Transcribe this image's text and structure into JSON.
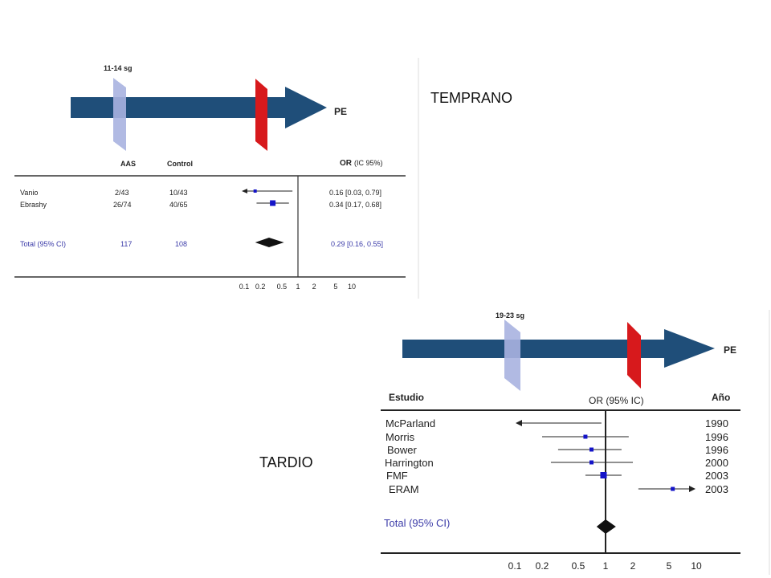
{
  "labels": {
    "early": "TEMPRANO",
    "late": "TARDIO"
  },
  "colors": {
    "arrow": "#1f4e79",
    "window": "#a9b3e0",
    "marker": "#d7191c",
    "study_box": "#1414c8",
    "total_text": "#3b3ba8"
  },
  "early": {
    "window_label": "11-14 sg",
    "end_label": "PE",
    "headers": {
      "aas": "AAS",
      "control": "Control",
      "or_bold": "OR",
      "or_rest": "(IC 95%)"
    },
    "studies": [
      {
        "name": "Vanio",
        "aas": "2/43",
        "control": "10/43",
        "or_text": "0.16 [0.03, 0.79]",
        "or": 0.16,
        "lo": 0.03,
        "hi": 0.79,
        "arrow_left": true
      },
      {
        "name": "Ebrashy",
        "aas": "26/74",
        "control": "40/65",
        "or_text": "0.34 [0.17, 0.68]",
        "or": 0.34,
        "lo": 0.17,
        "hi": 0.68,
        "arrow_left": false
      }
    ],
    "total": {
      "name": "Total (95% CI)",
      "aas": "117",
      "control": "108",
      "or_text": "0.29 [0.16, 0.55]",
      "or": 0.29,
      "lo": 0.16,
      "hi": 0.55
    },
    "ticks": [
      "0.1",
      "0.2",
      "0.5",
      "1",
      "2",
      "5",
      "10"
    ]
  },
  "late": {
    "window_label": "19-23 sg",
    "end_label": "PE",
    "headers": {
      "study": "Estudio",
      "or": "OR (95% IC)",
      "year": "Año"
    },
    "studies": [
      {
        "name": "McParland",
        "year": "1990",
        "lo": 0.1,
        "hi": 0.9,
        "or": null,
        "arrow_left": true,
        "arrow_right": false
      },
      {
        "name": "Morris",
        "year": "1996",
        "lo": 0.2,
        "hi": 1.8,
        "or": 0.6,
        "arrow_left": false,
        "arrow_right": false
      },
      {
        "name": "Bower",
        "year": "1996",
        "lo": 0.3,
        "hi": 1.5,
        "or": 0.7,
        "arrow_left": false,
        "arrow_right": false
      },
      {
        "name": "Harrington",
        "year": "2000",
        "lo": 0.25,
        "hi": 2.0,
        "or": 0.7,
        "arrow_left": false,
        "arrow_right": false
      },
      {
        "name": "FMF",
        "year": "2003",
        "lo": 0.6,
        "hi": 1.5,
        "or": 0.95,
        "arrow_left": false,
        "arrow_right": false
      },
      {
        "name": "ERAM",
        "year": "2003",
        "lo": 2.3,
        "hi": 10,
        "or": 5.5,
        "arrow_left": false,
        "arrow_right": true
      }
    ],
    "total": {
      "name": "Total (95% CI)",
      "or": 1.0,
      "lo": 0.9,
      "hi": 1.15
    },
    "ticks": [
      "0.1",
      "0.2",
      "0.5",
      "1",
      "2",
      "5",
      "10"
    ]
  }
}
